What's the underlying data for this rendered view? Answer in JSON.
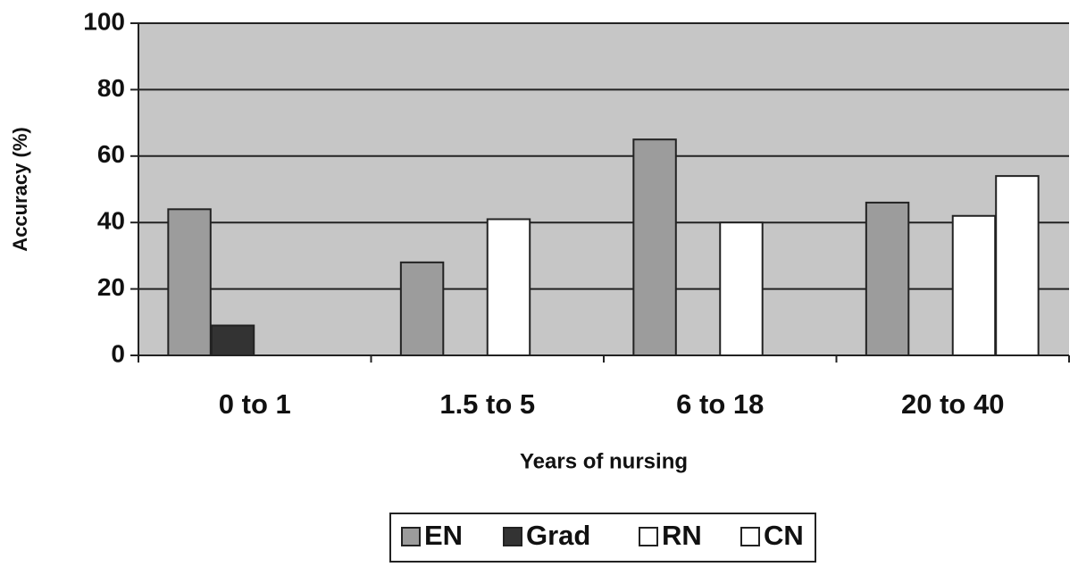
{
  "chart_data": {
    "type": "bar",
    "categories": [
      "0 to 1",
      "1.5 to 5",
      "6 to 18",
      "20 to 40"
    ],
    "series": [
      {
        "name": "EN",
        "color": "#9c9c9c",
        "values": [
          44,
          28,
          65,
          46
        ]
      },
      {
        "name": "Grad",
        "color": "#333333",
        "values": [
          9,
          null,
          null,
          null
        ]
      },
      {
        "name": "RN",
        "color": "#ffffff",
        "values": [
          null,
          41,
          40,
          42
        ]
      },
      {
        "name": "CN",
        "color": "#ffffff",
        "values": [
          null,
          null,
          null,
          54
        ]
      }
    ],
    "xlabel": "Years of nursing",
    "ylabel": "Accuracy (%)",
    "ylim": [
      0,
      100
    ],
    "yticks": [
      0,
      20,
      40,
      60,
      80,
      100
    ],
    "grid": true,
    "legend": "bottom"
  }
}
